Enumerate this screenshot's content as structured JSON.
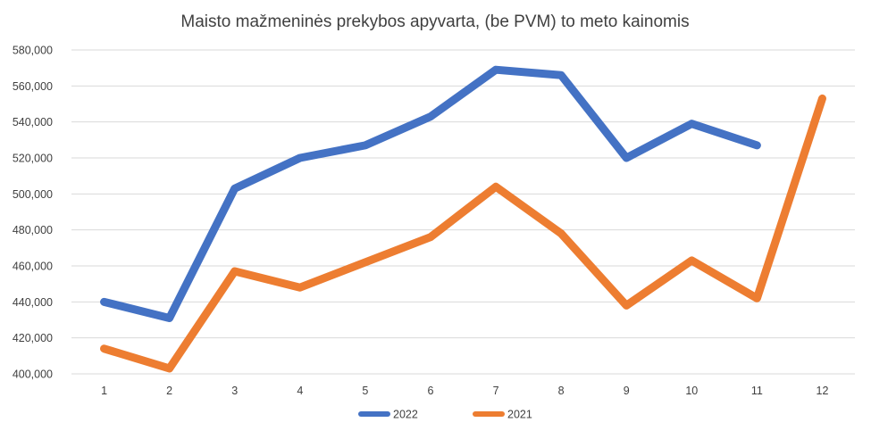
{
  "chart_data": {
    "type": "line",
    "title": "Maisto mažmeninės prekybos apyvarta, (be PVM) to meto kainomis",
    "xlabel": "",
    "ylabel": "",
    "categories": [
      "1",
      "2",
      "3",
      "4",
      "5",
      "6",
      "7",
      "8",
      "9",
      "10",
      "11",
      "12"
    ],
    "ylim": [
      400000,
      580000
    ],
    "yticks": [
      "400,000",
      "420,000",
      "440,000",
      "460,000",
      "480,000",
      "500,000",
      "520,000",
      "540,000",
      "560,000",
      "580,000"
    ],
    "grid": true,
    "legend_position": "bottom",
    "series": [
      {
        "name": "2022",
        "color": "#4472c4",
        "values": [
          440000,
          431000,
          503000,
          520000,
          527000,
          543000,
          569000,
          566000,
          520000,
          539000,
          527000,
          null
        ]
      },
      {
        "name": "2021",
        "color": "#ed7d31",
        "values": [
          414000,
          403000,
          457000,
          448000,
          462000,
          476000,
          504000,
          478000,
          438000,
          463000,
          442000,
          553000
        ]
      }
    ]
  }
}
